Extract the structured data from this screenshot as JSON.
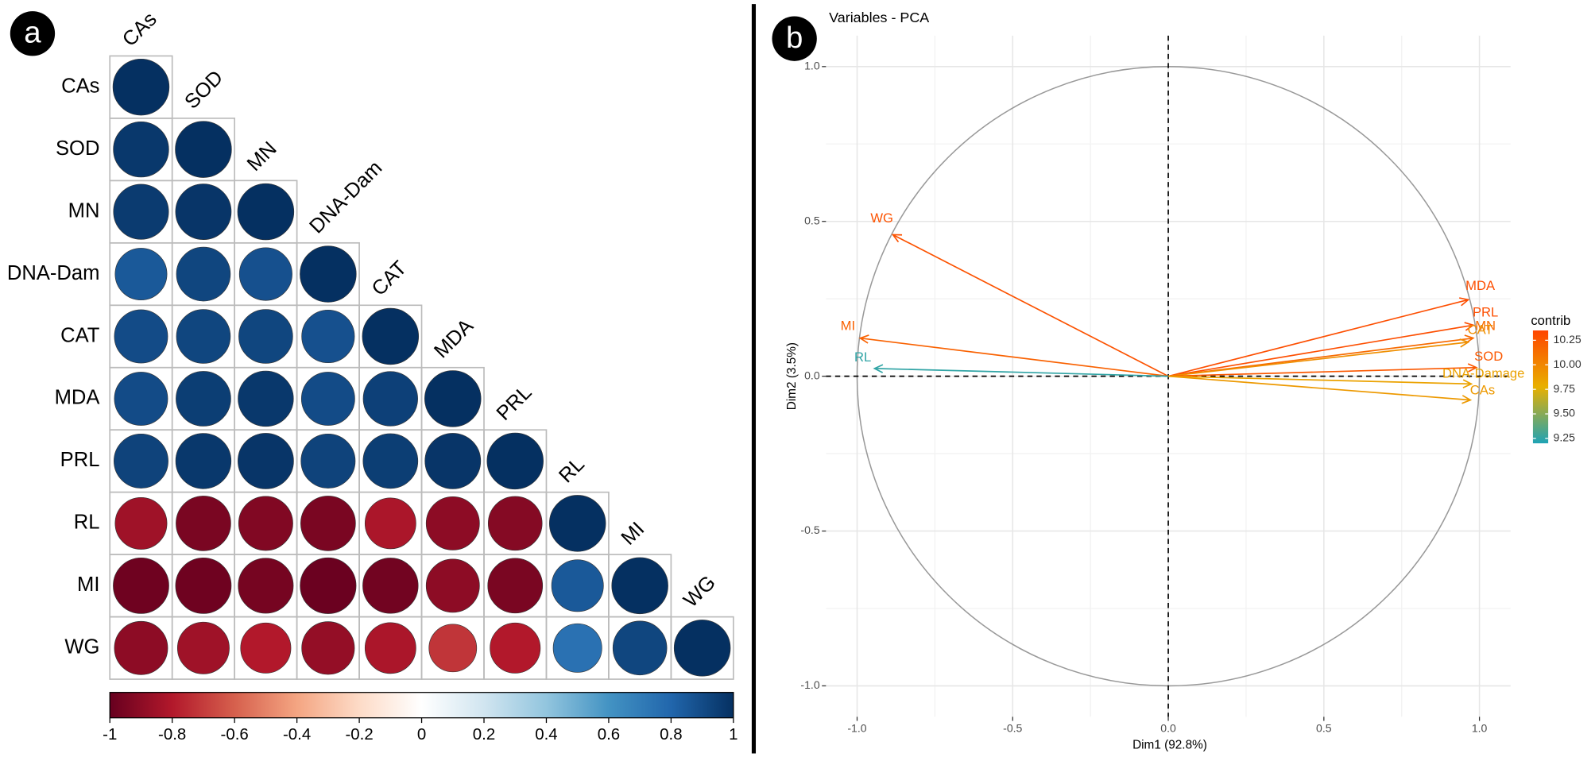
{
  "chart_data": [
    {
      "type": "corrplot",
      "panel": "a",
      "labels": [
        "CAs",
        "SOD",
        "MN",
        "DNA-Dam",
        "CAT",
        "MDA",
        "PRL",
        "RL",
        "MI",
        "WG"
      ],
      "matrix": [
        [
          1
        ],
        [
          0.97,
          1
        ],
        [
          0.96,
          0.98,
          1
        ],
        [
          0.85,
          0.92,
          0.88,
          1
        ],
        [
          0.9,
          0.92,
          0.92,
          0.88,
          1
        ],
        [
          0.9,
          0.95,
          0.97,
          0.9,
          0.94,
          1
        ],
        [
          0.93,
          0.97,
          0.98,
          0.93,
          0.95,
          0.98,
          1
        ],
        [
          -0.85,
          -0.95,
          -0.93,
          -0.95,
          -0.82,
          -0.9,
          -0.92,
          1
        ],
        [
          -0.98,
          -0.98,
          -0.96,
          -0.99,
          -0.97,
          -0.9,
          -0.95,
          0.85,
          1
        ],
        [
          -0.9,
          -0.85,
          -0.8,
          -0.88,
          -0.82,
          -0.72,
          -0.8,
          0.75,
          0.92,
          1
        ]
      ],
      "clim": [
        -1,
        1
      ],
      "colorbar_ticks": [
        -1,
        -0.8,
        -0.6,
        -0.4,
        -0.2,
        0,
        0.2,
        0.4,
        0.6,
        0.8,
        1
      ],
      "colors": [
        "#67001F",
        "#B2182B",
        "#D6604D",
        "#F4A582",
        "#FDDBC7",
        "#FFFFFF",
        "#D1E5F0",
        "#92C5DE",
        "#4393C3",
        "#2166AC",
        "#053061"
      ]
    },
    {
      "type": "pca-variables",
      "panel": "b",
      "title": "Variables - PCA",
      "xlabel": "Dim1 (92.8%)",
      "ylabel": "Dim2 (3.5%)",
      "variables": [
        "WG",
        "MI",
        "RL",
        "MDA",
        "PRL",
        "MN",
        "CAT",
        "SOD",
        "DNA-Damage",
        "CAs"
      ],
      "x": [
        -0.885,
        -0.99,
        -0.944,
        0.964,
        0.98,
        0.98,
        0.964,
        0.99,
        0.974,
        0.971
      ],
      "y": [
        0.457,
        0.123,
        0.025,
        0.247,
        0.165,
        0.123,
        0.11,
        0.028,
        -0.025,
        -0.077
      ],
      "contrib": [
        10.28,
        10.2,
        9.25,
        10.3,
        10.3,
        10.15,
        9.95,
        10.25,
        9.85,
        9.9
      ],
      "xlim": [
        -1.1,
        1.1
      ],
      "ylim": [
        -1.1,
        1.1
      ],
      "xticks": [
        {
          "value": -1,
          "label": "-1.0"
        },
        {
          "value": -0.5,
          "label": "-0.5"
        },
        {
          "value": 0,
          "label": "0.0"
        },
        {
          "value": 0.5,
          "label": "0.5"
        },
        {
          "value": 1,
          "label": "1.0"
        }
      ],
      "yticks": [
        {
          "value": -1,
          "label": "-1.0"
        },
        {
          "value": -0.5,
          "label": "-0.5"
        },
        {
          "value": 0,
          "label": "0.0"
        },
        {
          "value": 0.5,
          "label": "0.5"
        },
        {
          "value": 1,
          "label": "1.0"
        }
      ],
      "grid": true,
      "legend_title": "contrib",
      "clim": [
        9.2,
        10.35
      ],
      "legend_ticks": [
        9.25,
        {
          "value": 9.5,
          "label": "9.50"
        },
        9.75,
        {
          "value": 10,
          "label": "10.00"
        },
        10.25
      ],
      "colors": [
        "#1FA3B5",
        "#E8B000",
        "#FF4500"
      ]
    }
  ]
}
